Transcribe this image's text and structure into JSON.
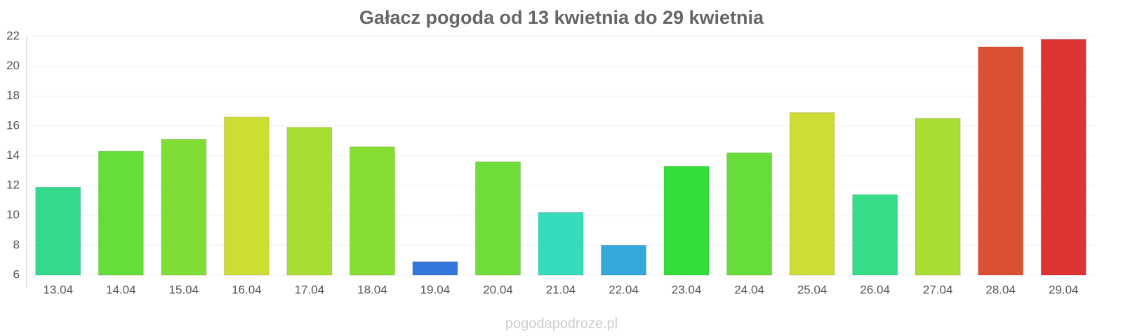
{
  "chart_data": {
    "type": "bar",
    "title": "Gałacz pogoda od 13 kwietnia do 29 kwietnia",
    "categories": [
      "13.04",
      "14.04",
      "15.04",
      "16.04",
      "17.04",
      "18.04",
      "19.04",
      "20.04",
      "21.04",
      "22.04",
      "23.04",
      "24.04",
      "25.04",
      "26.04",
      "27.04",
      "28.04",
      "29.04"
    ],
    "values": [
      11.9,
      14.3,
      15.1,
      16.6,
      15.9,
      14.6,
      6.9,
      13.6,
      10.2,
      8.0,
      13.3,
      14.2,
      16.9,
      11.4,
      16.5,
      21.3,
      21.8
    ],
    "colors": [
      "#35d98e",
      "#66dd3a",
      "#80dd35",
      "#cddd33",
      "#a8dd33",
      "#88dd33",
      "#3377dd",
      "#6edd3a",
      "#35dbbb",
      "#35a8db",
      "#33dd3a",
      "#66dd3a",
      "#cddd35",
      "#35dd88",
      "#aadd33",
      "#dd5133",
      "#dd3533"
    ],
    "ylim": [
      6,
      22
    ],
    "yticks": [
      6,
      8,
      10,
      12,
      14,
      16,
      18,
      20,
      22
    ],
    "grid": true,
    "source": "pogodapodroze.pl"
  }
}
